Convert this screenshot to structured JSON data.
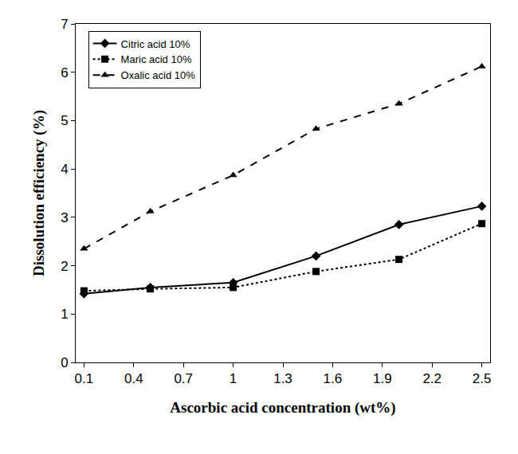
{
  "chart_data": {
    "type": "line",
    "x_label": "Ascorbic acid concentration (wt%)",
    "y_label": "Dissolution efficiency (%)",
    "x": [
      0.1,
      0.5,
      1,
      1.5,
      2,
      2.5
    ],
    "series": [
      {
        "name": "Citric acid 10%",
        "color": "#000000",
        "marker": "diamond",
        "line_style": "solid",
        "values": [
          1.42,
          1.55,
          1.65,
          2.2,
          2.85,
          3.23
        ]
      },
      {
        "name": "Maric acid 10%",
        "color": "#000000",
        "marker": "square",
        "line_style": "dot",
        "values": [
          1.48,
          1.52,
          1.55,
          1.88,
          2.13,
          2.87
        ]
      },
      {
        "name": "Oxalic acid 10%",
        "color": "#000000",
        "marker": "triangle-up",
        "line_style": "dash",
        "values": [
          2.35,
          3.12,
          3.87,
          4.83,
          5.35,
          6.12
        ]
      }
    ],
    "xlim": [
      0.05,
      2.55
    ],
    "xticks": [
      0.1,
      0.4,
      0.7,
      1,
      1.3,
      1.6,
      1.9,
      2.2,
      2.5
    ],
    "ylim": [
      0,
      7
    ],
    "yticks": [
      0,
      1,
      2,
      3,
      4,
      5,
      6,
      7
    ],
    "grid": false,
    "legend": "upper left"
  }
}
